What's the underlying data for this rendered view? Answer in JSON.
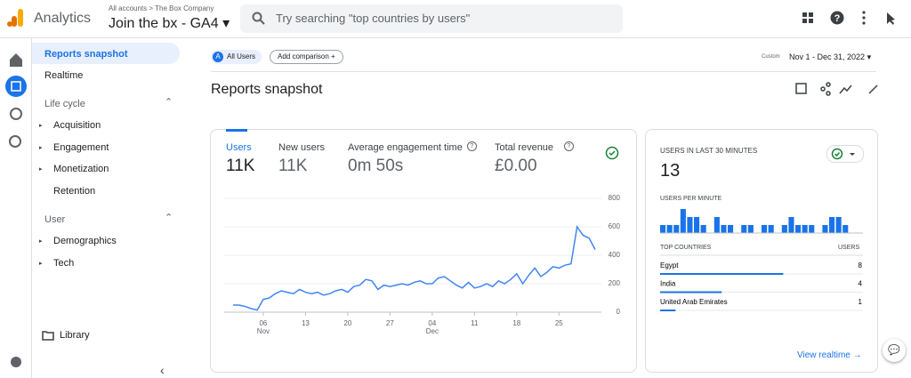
{
  "header": {
    "product": "Analytics",
    "breadcrumb": "All accounts",
    "account": "The Box Company",
    "property": "Join the bx - GA4",
    "search_placeholder": "Try searching \"top countries by users\""
  },
  "nav": {
    "items": [
      "Reports snapshot",
      "Realtime"
    ],
    "sections": [
      {
        "title": "Life cycle",
        "items": [
          "Acquisition",
          "Engagement",
          "Monetization",
          "Retention"
        ]
      },
      {
        "title": "User",
        "items": [
          "Demographics",
          "Tech"
        ]
      }
    ],
    "library": "Library"
  },
  "toolbar": {
    "segment_badge": "A",
    "segment": "All Users",
    "add_comparison": "Add comparison",
    "date_label": "Custom",
    "date_range": "Nov 1 - Dec 31, 2022"
  },
  "page_title": "Reports snapshot",
  "metrics": [
    {
      "label": "Users",
      "value": "11K"
    },
    {
      "label": "New users",
      "value": "11K"
    },
    {
      "label": "Average engagement time",
      "value": "0m 50s"
    },
    {
      "label": "Total revenue",
      "value": "£0.00"
    }
  ],
  "users_chart": {
    "type": "line",
    "color": "#4285f4",
    "values": [
      50,
      50,
      40,
      25,
      15,
      90,
      100,
      130,
      150,
      140,
      130,
      160,
      140,
      130,
      140,
      120,
      130,
      150,
      160,
      140,
      180,
      190,
      230,
      220,
      160,
      190,
      180,
      190,
      200,
      190,
      210,
      220,
      200,
      200,
      240,
      250,
      220,
      190,
      170,
      210,
      170,
      180,
      200,
      180,
      220,
      200,
      230,
      270,
      200,
      260,
      310,
      250,
      280,
      320,
      310,
      330,
      340,
      600,
      540,
      520,
      440
    ],
    "xlim": [
      0,
      60
    ],
    "xticks": [
      {
        "value": 5,
        "label": "06",
        "sublabel": "Nov"
      },
      {
        "value": 12,
        "label": "13"
      },
      {
        "value": 19,
        "label": "20"
      },
      {
        "value": 26,
        "label": "27"
      },
      {
        "value": 33,
        "label": "04",
        "sublabel": "Dec"
      },
      {
        "value": 40,
        "label": "11"
      },
      {
        "value": 47,
        "label": "18"
      },
      {
        "value": 54,
        "label": "25"
      }
    ],
    "ylim": [
      0,
      800
    ],
    "yticks": [
      0,
      200,
      400,
      600,
      800
    ],
    "grid": true
  },
  "realtime": {
    "title": "USERS IN LAST 30 MINUTES",
    "value": "13",
    "per_minute_title": "USERS PER MINUTE",
    "per_minute": {
      "type": "bar",
      "color": "#1a73e8",
      "values": [
        1,
        1,
        1,
        3,
        2,
        2,
        1,
        0,
        2,
        1,
        1,
        0,
        1,
        1,
        0,
        1,
        1,
        0,
        1,
        2,
        1,
        1,
        1,
        0,
        1,
        2,
        2,
        1,
        0,
        0
      ]
    },
    "countries_header": "TOP COUNTRIES",
    "users_header": "USERS",
    "countries": [
      {
        "name": "Egypt",
        "users": 8
      },
      {
        "name": "India",
        "users": 4
      },
      {
        "name": "United Arab Emirates",
        "users": 1
      }
    ],
    "link": "View realtime"
  }
}
